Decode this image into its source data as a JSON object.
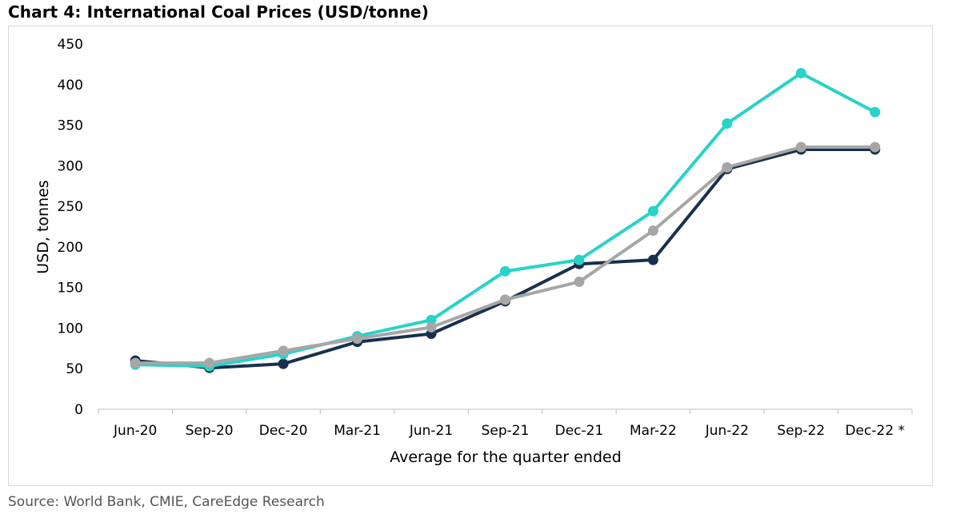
{
  "page": {
    "title": "Chart 4: International Coal Prices (USD/tonne)",
    "source": "Source: World Bank, CMIE, CareEdge Research"
  },
  "chart_data": {
    "type": "line",
    "title": "Chart 4: International Coal Prices (USD/tonne)",
    "xlabel": "Average for the quarter ended",
    "ylabel": "USD, tonnes",
    "ylim": [
      0,
      450
    ],
    "yticks": [
      0,
      50,
      100,
      150,
      200,
      250,
      300,
      350,
      400,
      450
    ],
    "categories": [
      "Jun-20",
      "Sep-20",
      "Dec-20",
      "Mar-21",
      "Jun-21",
      "Sep-21",
      "Dec-21",
      "Mar-22",
      "Jun-22",
      "Sep-22",
      "Dec-22 *"
    ],
    "grid": false,
    "legend": "none",
    "series": [
      {
        "name": "series-dark-navy",
        "color": "#17304f",
        "values": [
          60,
          51,
          56,
          83,
          93,
          133,
          179,
          184,
          296,
          320,
          320
        ]
      },
      {
        "name": "series-turquoise",
        "color": "#27d3c8",
        "values": [
          55,
          53,
          68,
          90,
          110,
          170,
          184,
          244,
          352,
          414,
          366
        ]
      },
      {
        "name": "series-grey",
        "color": "#a6a6a6",
        "values": [
          57,
          57,
          72,
          87,
          101,
          135,
          157,
          220,
          298,
          323,
          323
        ]
      }
    ]
  }
}
